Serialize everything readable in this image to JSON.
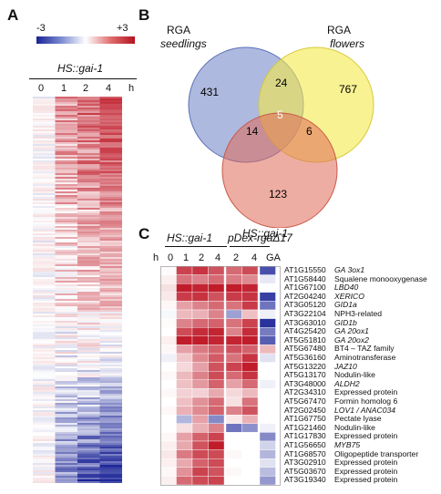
{
  "panels": {
    "a": {
      "letter": "A",
      "scale_min": "-3",
      "scale_max": "+3",
      "construct": "HS::gai-1",
      "timepoints": [
        "0",
        "1",
        "2",
        "4"
      ],
      "time_unit": "h"
    },
    "b": {
      "letter": "B",
      "sets": [
        {
          "name": "RGA",
          "sub": "seedlings",
          "color": "#6b7fc4"
        },
        {
          "name": "RGA",
          "sub": "flowers",
          "color": "#f4ea4a"
        },
        {
          "name": "HS::gai-1",
          "sub": "",
          "color": "#e06a58"
        }
      ],
      "counts": {
        "seedlings_only": "431",
        "flowers_only": "767",
        "gai_only": "123",
        "seedlings_flowers": "24",
        "seedlings_gai": "14",
        "flowers_gai": "6",
        "all_three": "5"
      }
    },
    "c": {
      "letter": "C",
      "group1_label": "HS::gai-1",
      "group2_label": "pDex-rgaΔ17",
      "time_label": "h",
      "columns": [
        "0",
        "1",
        "2",
        "4",
        "2",
        "4",
        "GA"
      ],
      "rows": [
        {
          "id": "AT1G15550",
          "desc": "GA 3ox1",
          "italic": true
        },
        {
          "id": "AT1G58440",
          "desc": "Squalene monooxygenase",
          "italic": false
        },
        {
          "id": "AT1G67100",
          "desc": "LBD40",
          "italic": true
        },
        {
          "id": "AT2G04240",
          "desc": "XERICO",
          "italic": true
        },
        {
          "id": "AT3G05120",
          "desc": "GID1a",
          "italic": true
        },
        {
          "id": "AT3G22104",
          "desc": "NPH3-related",
          "italic": false
        },
        {
          "id": "AT3G63010",
          "desc": "GID1b",
          "italic": true
        },
        {
          "id": "AT4G25420",
          "desc": "GA 20ox1",
          "italic": true
        },
        {
          "id": "AT5G51810",
          "desc": "GA 20ox2",
          "italic": true
        },
        {
          "id": "AT5G67480",
          "desc": "BT4 – TAZ family",
          "italic": false
        },
        {
          "id": "AT5G36160",
          "desc": "Aminotransferase",
          "italic": false
        },
        {
          "id": "AT5G13220",
          "desc": "JAZ10",
          "italic": true
        },
        {
          "id": "AT5G13170",
          "desc": "Nodulin-like",
          "italic": false
        },
        {
          "id": "AT3G48000",
          "desc": "ALDH2",
          "italic": true
        },
        {
          "id": "AT2G34310",
          "desc": "Expressed protein",
          "italic": false
        },
        {
          "id": "AT5G67470",
          "desc": "Formin homolog 6",
          "italic": false
        },
        {
          "id": "AT2G02450",
          "desc": "LOV1 / ANAC034",
          "italic": true
        },
        {
          "id": "AT1G67750",
          "desc": "Pectate lyase",
          "italic": false
        },
        {
          "id": "AT1G21460",
          "desc": "Nodulin-like",
          "italic": false
        },
        {
          "id": "AT1G17830",
          "desc": "Expressed protein",
          "italic": false
        },
        {
          "id": "AT1G56650",
          "desc": "MYB75",
          "italic": true
        },
        {
          "id": "AT1G68570",
          "desc": "Oligopeptide transporter",
          "italic": false
        },
        {
          "id": "AT3G02910",
          "desc": "Expressed protein",
          "italic": false
        },
        {
          "id": "AT5G03670",
          "desc": "Expressed protein",
          "italic": false
        },
        {
          "id": "AT3G19340",
          "desc": "Expressed protein",
          "italic": false
        }
      ],
      "heat": [
        [
          0.05,
          2.4,
          2.6,
          2.2,
          1.9,
          2.3,
          -2.4
        ],
        [
          0.2,
          1.8,
          1.6,
          1.9,
          1.7,
          1.5,
          -0.3
        ],
        [
          0.4,
          2.9,
          2.8,
          2.9,
          2.9,
          2.8,
          0.0
        ],
        [
          0.3,
          2.5,
          2.6,
          2.2,
          2.5,
          2.6,
          -2.6
        ],
        [
          0.1,
          1.2,
          1.6,
          1.9,
          1.8,
          2.5,
          -1.9
        ],
        [
          -0.1,
          0.9,
          1.0,
          1.6,
          -1.3,
          0.8,
          -0.2
        ],
        [
          0.05,
          1.6,
          1.9,
          2.0,
          1.8,
          2.4,
          -2.8
        ],
        [
          0.0,
          2.3,
          2.7,
          2.8,
          1.6,
          2.7,
          -1.8
        ],
        [
          0.2,
          2.9,
          2.9,
          2.8,
          2.8,
          2.9,
          -2.2
        ],
        [
          0.1,
          1.2,
          1.7,
          2.0,
          2.2,
          2.0,
          0.9
        ],
        [
          -0.2,
          0.7,
          1.5,
          2.1,
          1.8,
          2.6,
          -0.4
        ],
        [
          0.0,
          0.5,
          1.2,
          2.2,
          2.4,
          2.9,
          0.0
        ],
        [
          0.1,
          0.9,
          1.6,
          2.3,
          1.9,
          2.6,
          0.0
        ],
        [
          0.0,
          0.8,
          1.3,
          2.0,
          1.2,
          1.9,
          -0.2
        ],
        [
          0.1,
          0.6,
          0.6,
          1.1,
          0.5,
          0.9,
          0.0
        ],
        [
          0.0,
          0.8,
          1.4,
          1.9,
          0.4,
          1.8,
          0.0
        ],
        [
          0.1,
          1.0,
          1.5,
          2.0,
          1.6,
          2.2,
          0.0
        ],
        [
          0.0,
          -1.0,
          1.2,
          -1.6,
          0.3,
          1.0,
          0.0
        ],
        [
          0.0,
          0.4,
          1.0,
          1.6,
          -1.9,
          -1.5,
          -0.2
        ],
        [
          0.1,
          1.2,
          2.0,
          2.4,
          0.0,
          0.0,
          -1.6
        ],
        [
          0.2,
          1.1,
          2.2,
          2.9,
          0.0,
          0.0,
          -0.6
        ],
        [
          0.3,
          1.7,
          2.3,
          2.3,
          0.1,
          0.0,
          -1.0
        ],
        [
          0.2,
          1.1,
          2.0,
          2.3,
          0.0,
          0.0,
          -0.4
        ],
        [
          0.1,
          1.4,
          2.4,
          2.2,
          0.1,
          0.0,
          -0.9
        ],
        [
          0.2,
          1.9,
          2.3,
          2.4,
          0.0,
          0.0,
          -1.4
        ]
      ]
    }
  }
}
